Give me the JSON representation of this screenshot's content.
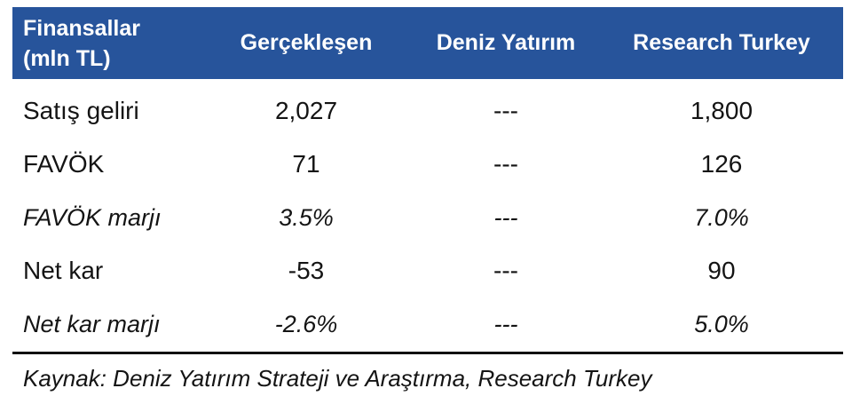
{
  "table": {
    "header": {
      "col1_line1": "Finansallar",
      "col1_line2": "(mln TL)",
      "col2": "Gerçekleşen",
      "col3": "Deniz Yatırım",
      "col4": "Research Turkey"
    },
    "rows": [
      {
        "label": "Satış geliri",
        "gerceklesen": "2,027",
        "deniz_yatirim": "---",
        "research_turkey": "1,800",
        "style": "normal"
      },
      {
        "label": "FAVÖK",
        "gerceklesen": "71",
        "deniz_yatirim": "---",
        "research_turkey": "126",
        "style": "normal"
      },
      {
        "label": "FAVÖK marjı",
        "gerceklesen": "3.5%",
        "deniz_yatirim": "---",
        "research_turkey": "7.0%",
        "style": "italic"
      },
      {
        "label": "Net kar",
        "gerceklesen": "-53",
        "deniz_yatirim": "---",
        "research_turkey": "90",
        "style": "normal"
      },
      {
        "label": "Net kar marjı",
        "gerceklesen": "-2.6%",
        "deniz_yatirim": "---",
        "research_turkey": "5.0%",
        "style": "italic"
      }
    ],
    "source_note": "Kaynak: Deniz Yatırım Strateji ve Araştırma, Research Turkey"
  },
  "colors": {
    "header_background": "#27549B",
    "header_text": "#FFFFFF",
    "body_text": "#141414",
    "divider": "#111111"
  }
}
